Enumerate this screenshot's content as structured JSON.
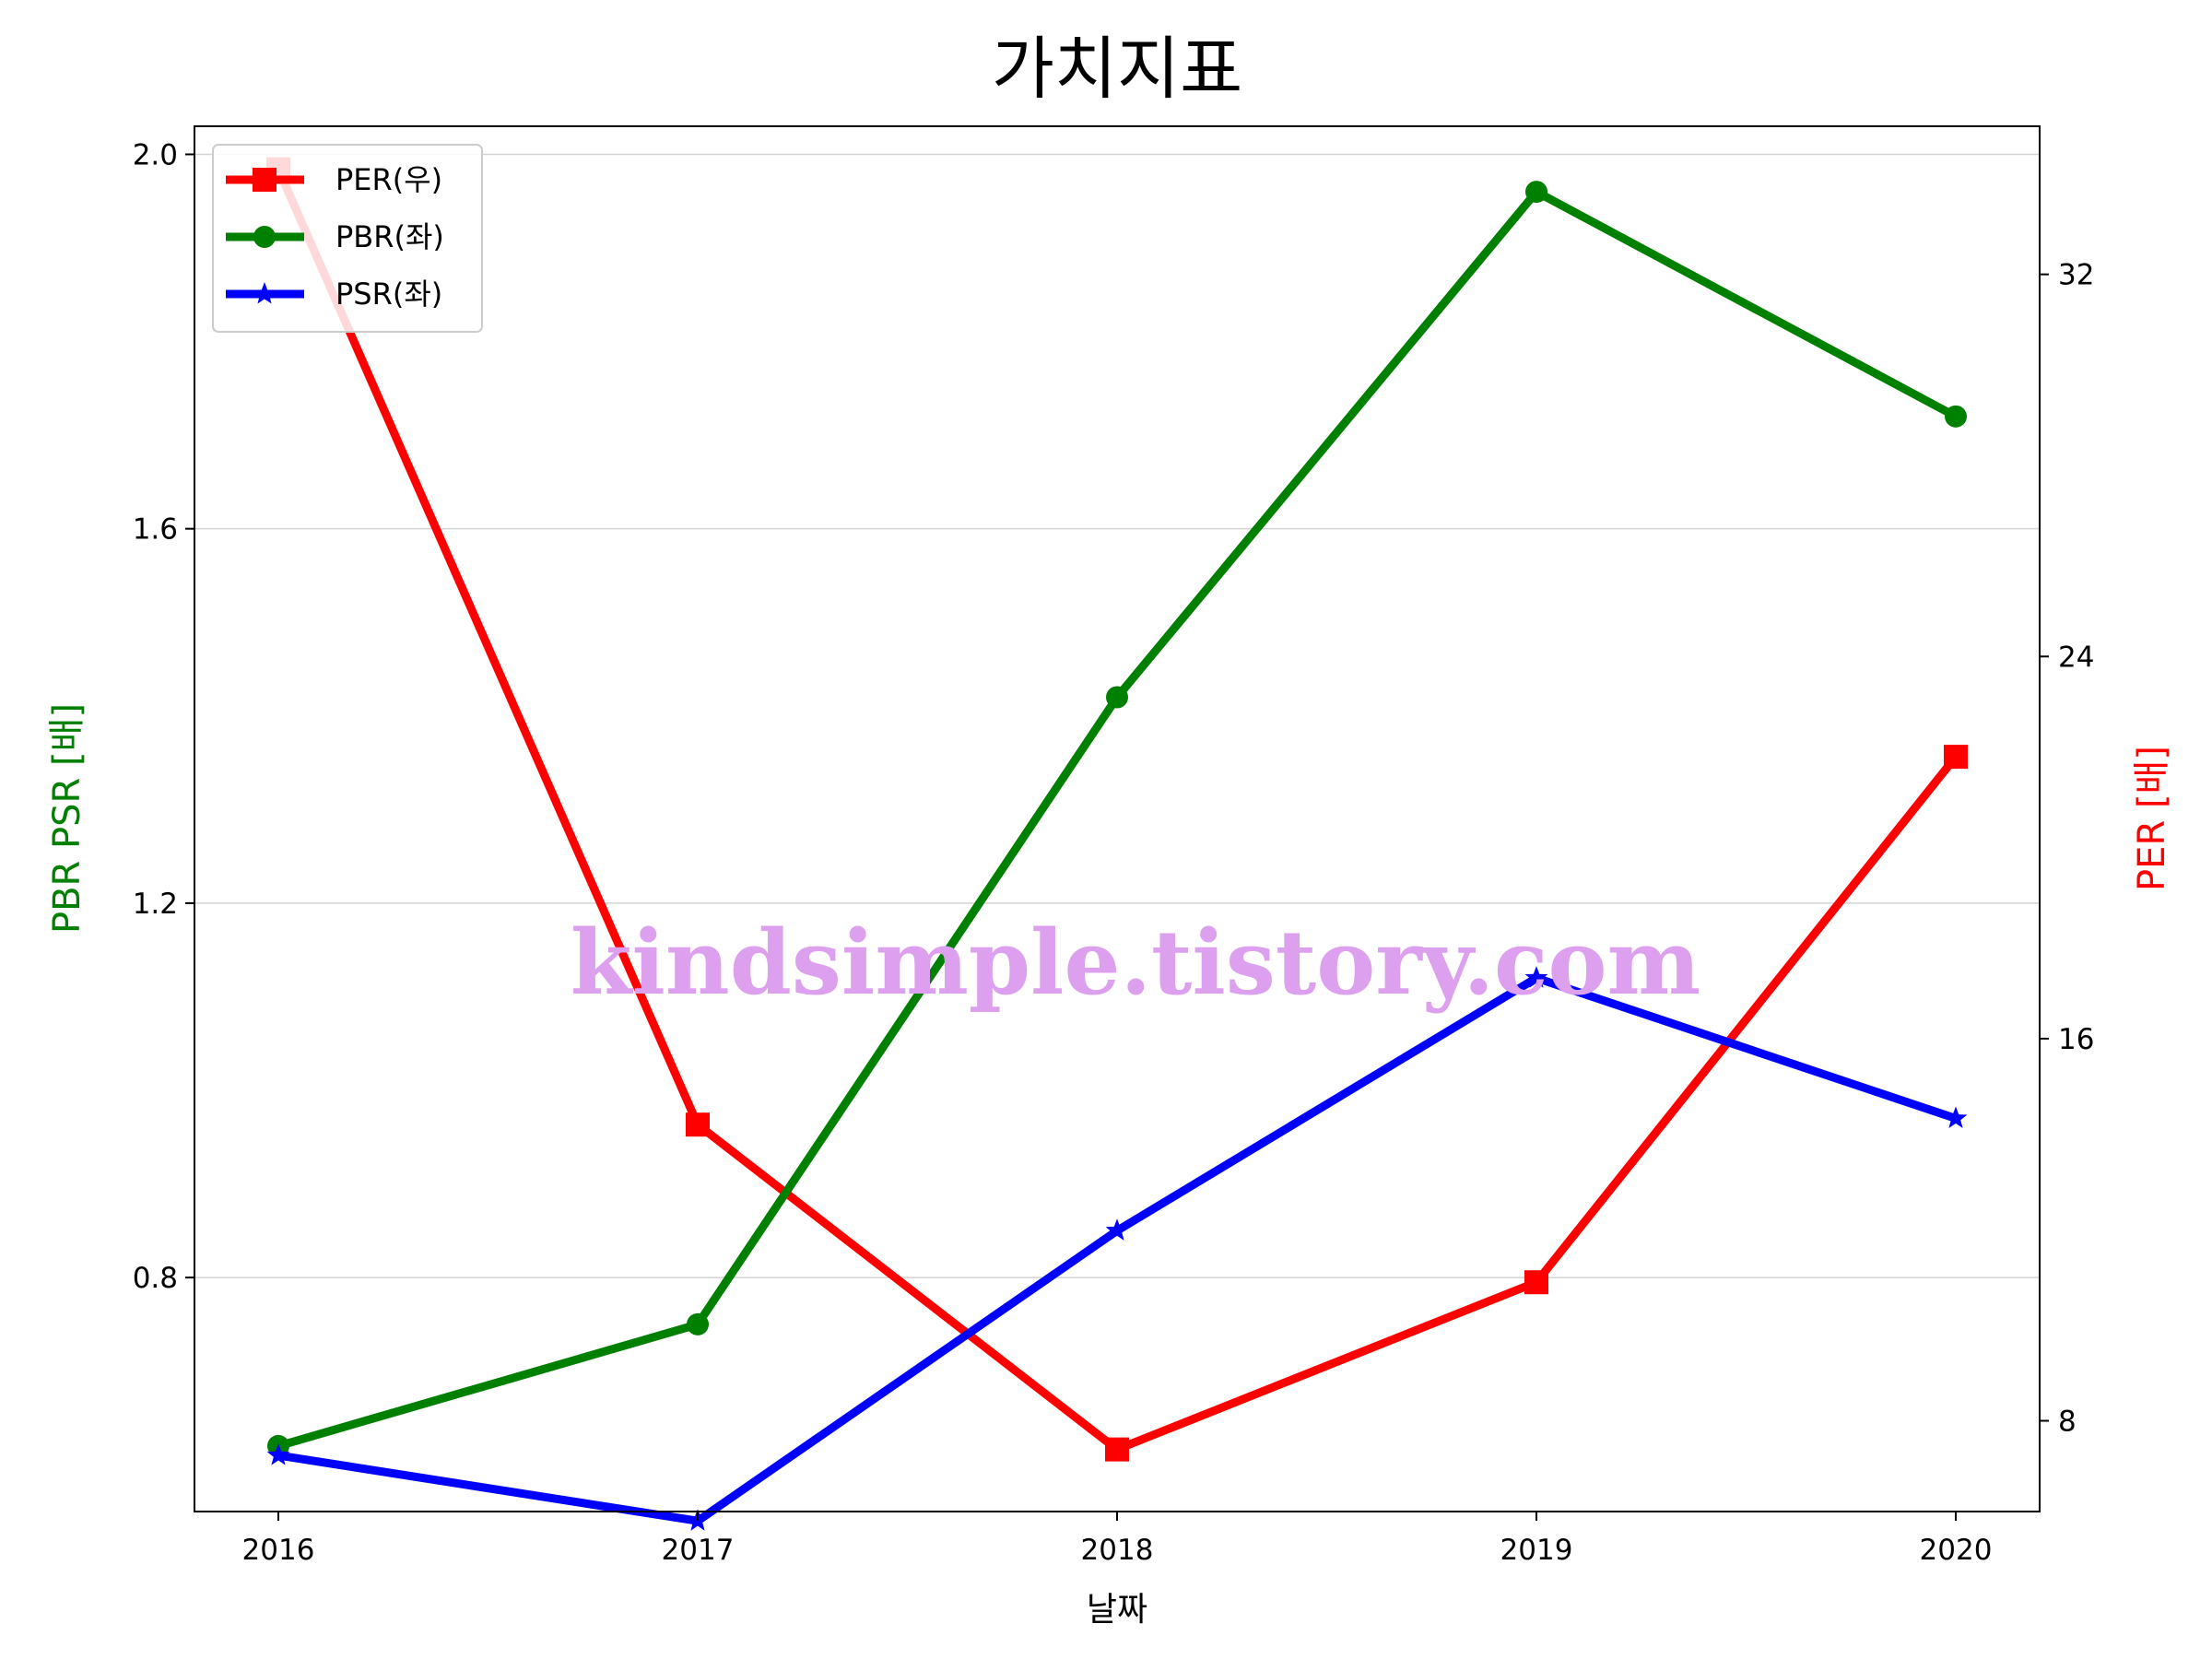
{
  "chart_data": {
    "type": "line",
    "title": "가치지표",
    "xlabel": "날짜",
    "ylabel_left": "PBR PSR [배]",
    "ylabel_right": "PER [배]",
    "categories": [
      "2016",
      "2017",
      "2018",
      "2019",
      "2020"
    ],
    "ylim_left": [
      0.55,
      2.03
    ],
    "ylim_right": [
      6.1,
      35.1
    ],
    "yticks_left": [
      "0.8",
      "1.2",
      "1.6",
      "2.0"
    ],
    "yticks_right": [
      "8",
      "16",
      "24",
      "32"
    ],
    "grid": true,
    "legend_position": "top-left",
    "series": [
      {
        "name": "PER(우)",
        "axis": "right",
        "color": "#ff0000",
        "marker": "square",
        "values": [
          34.2,
          14.2,
          7.4,
          10.9,
          21.9
        ]
      },
      {
        "name": "PBR(좌)",
        "axis": "left",
        "color": "#008000",
        "marker": "circle",
        "values": [
          0.62,
          0.75,
          1.42,
          1.96,
          1.72
        ]
      },
      {
        "name": "PSR(좌)",
        "axis": "left",
        "color": "#0000ff",
        "marker": "star",
        "values": [
          0.61,
          0.54,
          0.85,
          1.12,
          0.97
        ]
      }
    ],
    "left_label_color": "#008000",
    "right_label_color": "#ff0000"
  },
  "watermark": {
    "text": "kindsimple.tistory.com",
    "color": "#dda0ee"
  }
}
